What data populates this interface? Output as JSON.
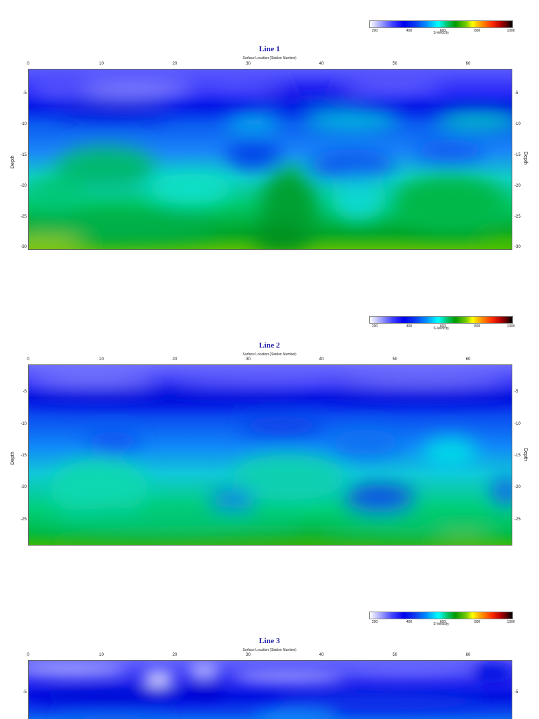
{
  "colorbar": {
    "ticks": [
      "200",
      "400",
      "600",
      "800",
      "1000"
    ],
    "label": "S-Velocity",
    "colors": [
      "#ffffff",
      "#4040ff",
      "#0000ee",
      "#00ffff",
      "#009a00",
      "#ffff00",
      "#ff2a00",
      "#000000"
    ]
  },
  "chart_data": [
    {
      "type": "heatmap",
      "title": "Line 1",
      "xlabel": "Surface Location (Station Number)",
      "ylabel": "Depth",
      "x_ticks": [
        "0",
        "10",
        "20",
        "30",
        "40",
        "50",
        "60"
      ],
      "y_ticks": [
        "-5",
        "-10",
        "-15",
        "-20",
        "-25",
        "-30"
      ],
      "xlim": [
        0,
        66
      ],
      "ylim": [
        -30.5,
        -1
      ],
      "colorbar": "S-Velocity",
      "zlim": [
        200,
        1000
      ]
    },
    {
      "type": "heatmap",
      "title": "Line 2",
      "xlabel": "Surface Location (Station Number)",
      "ylabel": "Depth",
      "x_ticks": [
        "0",
        "10",
        "20",
        "30",
        "40",
        "50",
        "60"
      ],
      "y_ticks": [
        "-5",
        "-10",
        "-15",
        "-20",
        "-25"
      ],
      "xlim": [
        0,
        66
      ],
      "ylim": [
        -29,
        -1
      ],
      "colorbar": "S-Velocity",
      "zlim": [
        200,
        1000
      ]
    },
    {
      "type": "heatmap",
      "title": "Line 3",
      "xlabel": "Surface Location (Station Number)",
      "ylabel": "Depth",
      "x_ticks": [
        "0",
        "10",
        "20",
        "30",
        "40",
        "50",
        "60"
      ],
      "y_ticks": [
        "-5"
      ],
      "xlim": [
        0,
        66
      ],
      "ylim": [
        -10,
        -1
      ],
      "colorbar": "S-Velocity",
      "zlim": [
        200,
        1000
      ]
    }
  ]
}
